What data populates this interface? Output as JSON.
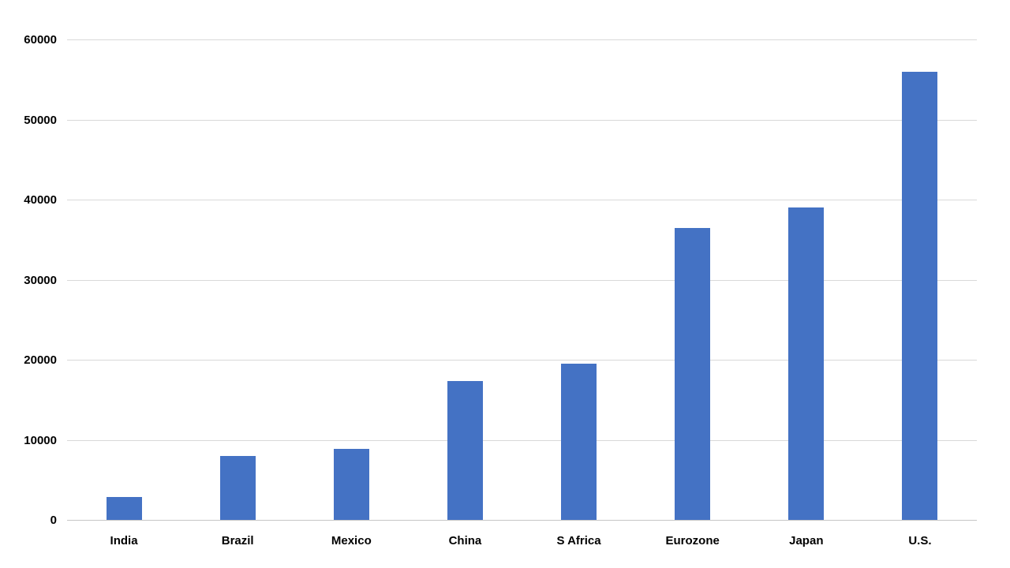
{
  "chart_data": {
    "type": "bar",
    "categories": [
      "India",
      "Brazil",
      "Mexico",
      "China",
      "S Africa",
      "Eurozone",
      "Japan",
      "U.S."
    ],
    "values": [
      2900,
      8000,
      8900,
      17400,
      19600,
      36500,
      39100,
      56000
    ],
    "series": [
      {
        "name": "",
        "values": [
          2900,
          8000,
          8900,
          17400,
          19600,
          36500,
          39100,
          56000
        ]
      }
    ],
    "xlabel": "",
    "ylabel": "",
    "ylim": [
      0,
      60000
    ],
    "y_tick_step": 10000,
    "y_tick_labels": [
      "0",
      "10000",
      "20000",
      "30000",
      "40000",
      "50000",
      "60000"
    ],
    "grid": "horizontal",
    "legend": "none",
    "colors": {
      "bar_fill": "#4472C4",
      "gridline": "#D9D9D9",
      "axis_line": "#C6C6C6",
      "label_text": "#000000",
      "background": "#FFFFFF"
    }
  }
}
